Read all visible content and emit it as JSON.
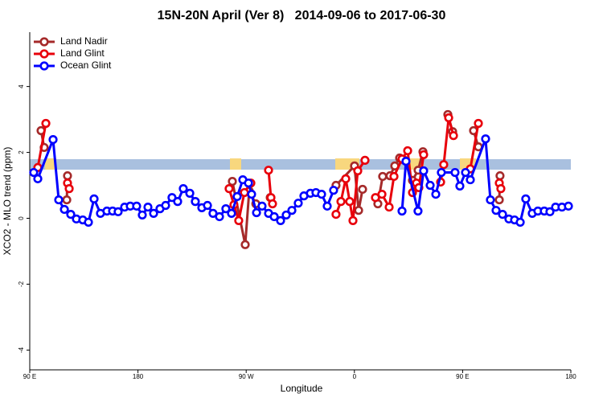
{
  "chart_data": {
    "type": "line",
    "title": "15N-20N April (Ver 8)   2014-09-06 to 2017-06-30",
    "xlabel": "Longitude",
    "ylabel": "XCO2 - MLO trend (ppm)",
    "xlim": [
      90,
      540
    ],
    "ylim": [
      -4.6,
      5.65
    ],
    "xticks": [
      {
        "value": 90,
        "label": "90 E"
      },
      {
        "value": 180,
        "label": "180"
      },
      {
        "value": 270,
        "label": "90 W"
      },
      {
        "value": 360,
        "label": "0"
      },
      {
        "value": 450,
        "label": "90 E"
      },
      {
        "value": 540,
        "label": "180"
      }
    ],
    "yticks": [
      -4,
      -2,
      0,
      2,
      4
    ],
    "legend": "top-left",
    "series": [
      {
        "name": "Land Nadir",
        "color": "#a52a2a",
        "x": [
          99.4,
          102.0,
          null,
          120.8,
          121.4,
          null,
          258.5,
          269.2,
          272.5,
          278.0,
          null,
          290.0,
          null,
          344.7,
          360.1,
          363.5,
          366.8,
          null,
          379.5,
          383.5,
          389.6,
          393.6,
          397.6,
          401.6,
          408.3,
          413.0,
          417.0,
          null,
          437.7,
          441.7,
          null,
          459.1,
          463.1,
          null,
          480.5,
          481.1
        ],
        "values": [
          2.66,
          2.15,
          null,
          0.56,
          1.29,
          null,
          1.12,
          -0.8,
          0.83,
          0.44,
          null,
          0.63,
          null,
          1.0,
          1.59,
          0.24,
          0.88,
          null,
          0.44,
          1.27,
          1.29,
          1.59,
          1.83,
          1.76,
          1.15,
          1.46,
          2.02,
          null,
          3.15,
          2.63,
          null,
          2.66,
          2.17,
          null,
          0.56,
          1.29
        ]
      },
      {
        "name": "Land Glint",
        "color": "#e8000b",
        "x": [
          96.7,
          103.4,
          null,
          121.4,
          122.8,
          null,
          255.8,
          259.8,
          263.8,
          268.5,
          273.9,
          null,
          288.6,
          290.6,
          291.9,
          null,
          344.7,
          348.8,
          352.8,
          356.1,
          358.8,
          362.8,
          368.8,
          null,
          377.5,
          382.9,
          388.9,
          392.9,
          399.6,
          404.3,
          408.3,
          411.6,
          413.6,
          417.6,
          null,
          431.7,
          434.3,
          438.4,
          442.4,
          null,
          456.4,
          463.1,
          null,
          480.5,
          481.8
        ],
        "values": [
          1.54,
          2.88,
          null,
          1.07,
          0.9,
          null,
          0.9,
          0.41,
          -0.07,
          0.78,
          1.07,
          null,
          1.46,
          0.63,
          0.44,
          null,
          0.12,
          0.51,
          1.2,
          0.51,
          -0.07,
          1.44,
          1.76,
          null,
          0.63,
          0.73,
          0.34,
          1.27,
          1.8,
          2.05,
          0.78,
          1.07,
          0.93,
          1.93,
          null,
          1.1,
          1.63,
          3.05,
          2.51,
          null,
          1.5,
          2.88,
          null,
          1.07,
          0.9
        ]
      },
      {
        "name": "Ocean Glint",
        "color": "#0000ff",
        "x": [
          93.3,
          96.7,
          109.4,
          114.1,
          118.8,
          124.1,
          128.8,
          134.1,
          138.8,
          143.5,
          148.8,
          154.2,
          158.9,
          163.5,
          168.9,
          173.6,
          178.9,
          183.6,
          188.3,
          193.0,
          198.3,
          203.0,
          208.3,
          213.0,
          217.7,
          223.1,
          227.7,
          233.1,
          237.8,
          242.4,
          247.8,
          253.1,
          257.8,
          262.5,
          267.2,
          271.9,
          274.5,
          278.6,
          283.2,
          288.6,
          293.3,
          298.6,
          303.3,
          308.0,
          313.3,
          318.0,
          323.4,
          328.0,
          332.7,
          337.4,
          342.7,
          null,
          399.6,
          402.9,
          412.9,
          417.6,
          423.0,
          427.7,
          432.3,
          443.7,
          447.7,
          452.4,
          456.4,
          469.1,
          473.1,
          477.8,
          483.2,
          488.5,
          493.2,
          497.9,
          502.5,
          507.9,
          512.6,
          517.9,
          522.6,
          527.3,
          532.6,
          538.0
        ],
        "values": [
          1.39,
          1.2,
          2.39,
          0.56,
          0.27,
          0.12,
          -0.02,
          -0.05,
          -0.12,
          0.59,
          0.15,
          0.22,
          0.22,
          0.2,
          0.34,
          0.37,
          0.37,
          0.1,
          0.34,
          0.15,
          0.29,
          0.39,
          0.63,
          0.51,
          0.9,
          0.76,
          0.51,
          0.32,
          0.39,
          0.15,
          0.05,
          0.29,
          0.15,
          0.66,
          1.17,
          1.07,
          0.73,
          0.17,
          0.37,
          0.15,
          0.05,
          -0.07,
          0.1,
          0.24,
          0.46,
          0.68,
          0.76,
          0.78,
          0.73,
          0.37,
          0.85,
          null,
          0.22,
          1.73,
          0.22,
          1.44,
          1.0,
          0.73,
          1.39,
          1.39,
          0.98,
          1.39,
          1.17,
          2.41,
          0.56,
          0.24,
          0.12,
          -0.02,
          -0.05,
          -0.12,
          0.59,
          0.15,
          0.22,
          0.22,
          0.2,
          0.34,
          0.34,
          0.37
        ]
      }
    ]
  }
}
